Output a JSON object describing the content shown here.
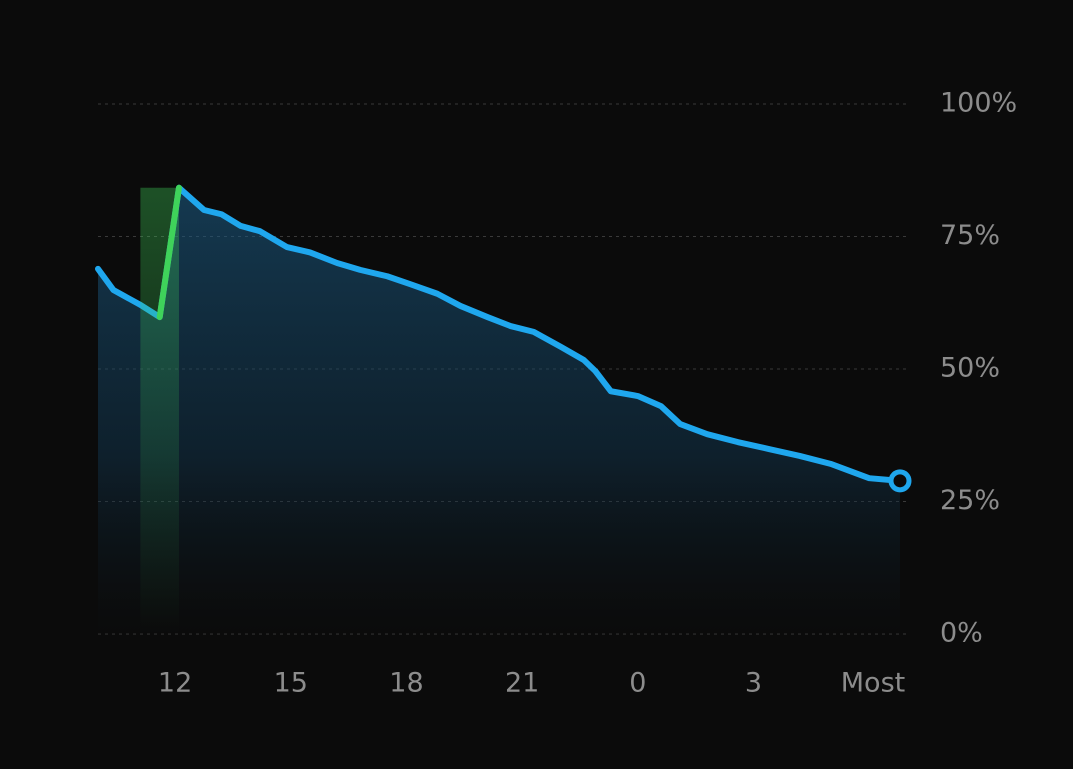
{
  "chart_data": {
    "type": "line",
    "x": [
      10.0,
      10.4,
      11.1,
      11.6,
      12.1,
      12.75,
      13.2,
      13.7,
      14.2,
      14.9,
      15.5,
      16.2,
      16.8,
      17.5,
      18.1,
      18.8,
      19.4,
      20.1,
      20.7,
      21.3,
      22.0,
      22.6,
      22.9,
      23.3,
      24.0,
      24.6,
      25.1,
      25.8,
      26.6,
      27.4,
      28.2,
      29.0,
      30.0,
      30.8
    ],
    "series": [
      {
        "color": "#1fa7ee",
        "values": [
          68.9,
          64.9,
          62.1,
          59.8,
          84.2,
          80,
          79.2,
          77,
          76,
          73,
          72,
          70,
          68.7,
          67.5,
          66,
          64.2,
          61.9,
          59.8,
          58.1,
          57,
          54.2,
          51.7,
          49.6,
          45.8,
          44.9,
          43,
          39.6,
          37.7,
          36.2,
          34.9,
          33.6,
          32.1,
          29.4,
          28.9
        ]
      },
      {
        "color": "#3fd35a",
        "values": [
          null,
          null,
          null,
          59.8,
          84.2,
          null,
          null,
          null,
          null,
          null,
          null,
          null,
          null,
          null,
          null,
          null,
          null,
          null,
          null,
          null,
          null,
          null,
          null,
          null,
          null,
          null,
          null,
          null,
          null,
          null,
          null,
          null,
          null,
          null
        ]
      }
    ],
    "xlim": [
      10.0,
      30.8
    ],
    "xticks": [
      12,
      15,
      18,
      21,
      {
        "value": 24,
        "label": "0"
      },
      {
        "value": 27,
        "label": "3"
      },
      {
        "value": 30.1,
        "label": "Most"
      }
    ],
    "ylim": [
      0,
      100
    ],
    "yticks": [
      {
        "value": 0,
        "label": "0%"
      },
      {
        "value": 25,
        "label": "25%"
      },
      {
        "value": 50,
        "label": "50%"
      },
      {
        "value": 75,
        "label": "75%"
      },
      {
        "value": 100,
        "label": "100%"
      }
    ],
    "grid": true
  }
}
